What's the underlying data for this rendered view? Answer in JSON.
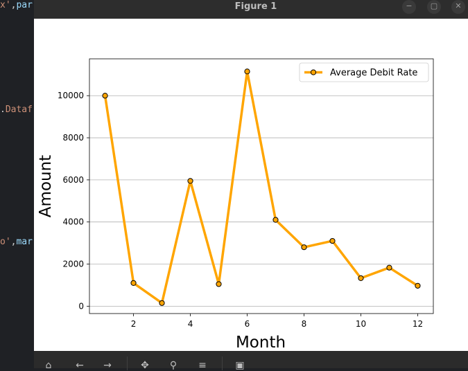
{
  "window": {
    "title": "Figure 1"
  },
  "editor": {
    "lines": [
      {
        "parts": [
          {
            "t": "x'",
            "c": "s"
          },
          {
            "t": ",",
            "c": "w"
          },
          {
            "t": "par",
            "c": "v"
          }
        ]
      },
      {
        "parts": [
          {
            "t": ".",
            "c": "w"
          },
          {
            "t": "Dataf",
            "c": "s"
          }
        ]
      },
      {
        "parts": [
          {
            "t": "o'",
            "c": "s"
          },
          {
            "t": ",",
            "c": "w"
          },
          {
            "t": "mar",
            "c": "v"
          }
        ]
      }
    ]
  },
  "toolbar": {
    "buttons": [
      {
        "name": "home-icon",
        "glyph": "⌂"
      },
      {
        "name": "back-icon",
        "glyph": "←"
      },
      {
        "name": "forward-icon",
        "glyph": "→"
      },
      {
        "name": "pan-icon",
        "glyph": "✥"
      },
      {
        "name": "zoom-icon",
        "glyph": "⚲"
      },
      {
        "name": "configure-subplots-icon",
        "glyph": "≡"
      },
      {
        "name": "save-icon",
        "glyph": "▣"
      }
    ]
  },
  "chart_data": {
    "type": "line",
    "x": [
      1,
      2,
      3,
      4,
      5,
      6,
      7,
      8,
      9,
      10,
      11,
      12
    ],
    "series": [
      {
        "name": "Average Debit Rate",
        "values": [
          10000,
          1100,
          150,
          5950,
          1050,
          11150,
          4100,
          2800,
          3100,
          1330,
          1830,
          970
        ],
        "color": "#ffa500",
        "marker_edge": "#000000"
      }
    ],
    "xlabel": "Month",
    "ylabel": "Amount",
    "xlim": [
      0.45,
      12.55
    ],
    "ylim": [
      -350,
      11750
    ],
    "xticks": [
      2,
      4,
      6,
      8,
      10,
      12
    ],
    "yticks": [
      0,
      2000,
      4000,
      6000,
      8000,
      10000
    ],
    "grid": "horizontal",
    "legend": "top-right"
  }
}
